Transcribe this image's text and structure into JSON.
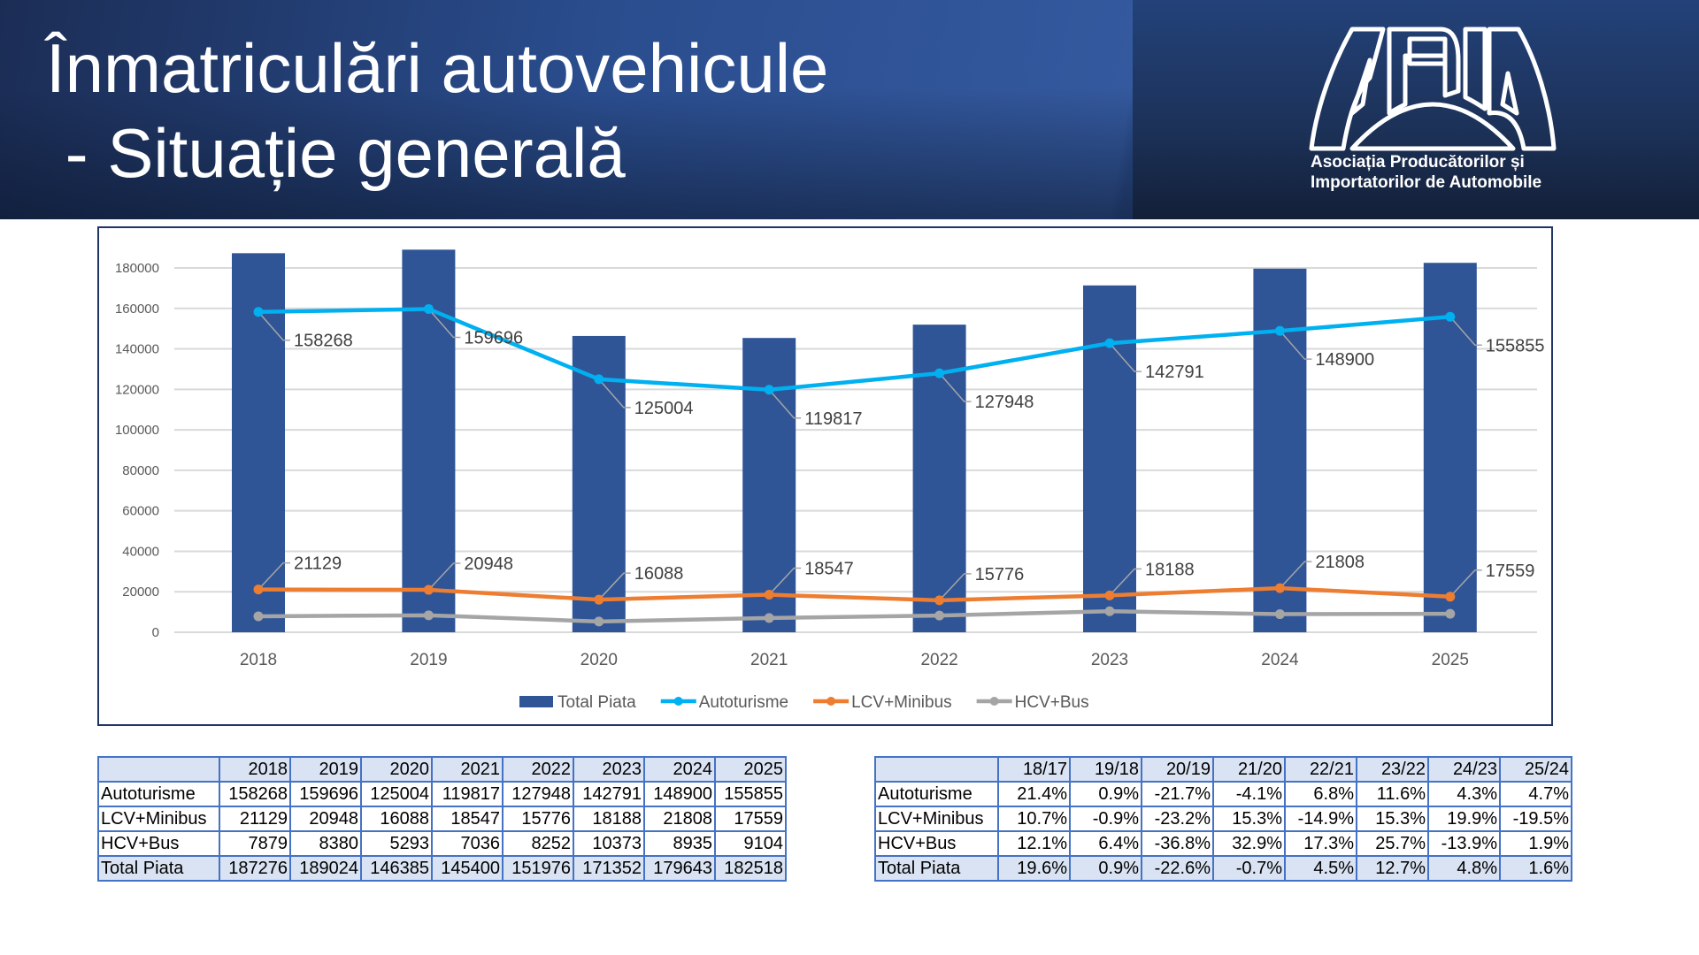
{
  "header": {
    "title_line1": "Înmatriculări autovehicule",
    "title_line2": " - Situație generală",
    "logo": {
      "letters": "APIA",
      "line1": "Asociația Producătorilor și",
      "line2": "Importatorilor de Automobile"
    }
  },
  "chart_data": {
    "type": "bar+line",
    "title": "",
    "categories": [
      "2018",
      "2019",
      "2020",
      "2021",
      "2022",
      "2023",
      "2024",
      "2025"
    ],
    "ylim": [
      0,
      180000
    ],
    "yticks": [
      "0",
      "20000",
      "40000",
      "60000",
      "80000",
      "100000",
      "120000",
      "140000",
      "160000",
      "180000"
    ],
    "grid": true,
    "legend_position": "bottom",
    "series": [
      {
        "name": "Total Piata",
        "kind": "bar",
        "color": "#2f5597",
        "values": [
          187276,
          189024,
          146385,
          145400,
          151976,
          171352,
          179643,
          182518
        ],
        "labels": false
      },
      {
        "name": "Autoturisme",
        "kind": "line",
        "color": "#00b0f0",
        "values": [
          158268,
          159696,
          125004,
          119817,
          127948,
          142791,
          148900,
          155855
        ],
        "labels": true
      },
      {
        "name": "LCV+Minibus",
        "kind": "line",
        "color": "#ed7d31",
        "values": [
          21129,
          20948,
          16088,
          18547,
          15776,
          18188,
          21808,
          17559
        ],
        "labels": true
      },
      {
        "name": "HCV+Bus",
        "kind": "line",
        "color": "#a5a5a5",
        "values": [
          7879,
          8380,
          5293,
          7036,
          8252,
          10373,
          8935,
          9104
        ],
        "labels": false
      }
    ]
  },
  "values_table": {
    "headers": [
      "",
      "2018",
      "2019",
      "2020",
      "2021",
      "2022",
      "2023",
      "2024",
      "2025"
    ],
    "rows": [
      [
        "Autoturisme",
        "158268",
        "159696",
        "125004",
        "119817",
        "127948",
        "142791",
        "148900",
        "155855"
      ],
      [
        "LCV+Minibus",
        "21129",
        "20948",
        "16088",
        "18547",
        "15776",
        "18188",
        "21808",
        "17559"
      ],
      [
        "HCV+Bus",
        "7879",
        "8380",
        "5293",
        "7036",
        "8252",
        "10373",
        "8935",
        "9104"
      ],
      [
        "Total Piata",
        "187276",
        "189024",
        "146385",
        "145400",
        "151976",
        "171352",
        "179643",
        "182518"
      ]
    ]
  },
  "growth_table": {
    "headers": [
      "",
      "18/17",
      "19/18",
      "20/19",
      "21/20",
      "22/21",
      "23/22",
      "24/23",
      "25/24"
    ],
    "rows": [
      [
        "Autoturisme",
        "21.4%",
        "0.9%",
        "-21.7%",
        "-4.1%",
        "6.8%",
        "11.6%",
        "4.3%",
        "4.7%"
      ],
      [
        "LCV+Minibus",
        "10.7%",
        "-0.9%",
        "-23.2%",
        "15.3%",
        "-14.9%",
        "15.3%",
        "19.9%",
        "-19.5%"
      ],
      [
        "HCV+Bus",
        "12.1%",
        "6.4%",
        "-36.8%",
        "32.9%",
        "17.3%",
        "25.7%",
        "-13.9%",
        "1.9%"
      ],
      [
        "Total Piata",
        "19.6%",
        "0.9%",
        "-22.6%",
        "-0.7%",
        "4.5%",
        "12.7%",
        "4.8%",
        "1.6%"
      ]
    ]
  }
}
